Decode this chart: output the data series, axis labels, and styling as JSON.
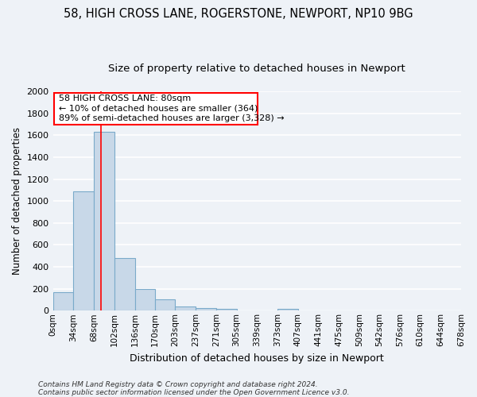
{
  "title1": "58, HIGH CROSS LANE, ROGERSTONE, NEWPORT, NP10 9BG",
  "title2": "Size of property relative to detached houses in Newport",
  "xlabel": "Distribution of detached houses by size in Newport",
  "ylabel": "Number of detached properties",
  "footnote1": "Contains HM Land Registry data © Crown copyright and database right 2024.",
  "footnote2": "Contains public sector information licensed under the Open Government Licence v3.0.",
  "bin_edges": [
    0,
    34,
    68,
    102,
    136,
    170,
    203,
    237,
    271,
    305,
    339,
    373,
    407,
    441,
    475,
    509,
    542,
    576,
    610,
    644,
    678
  ],
  "bar_heights": [
    170,
    1090,
    1630,
    480,
    200,
    100,
    40,
    25,
    18,
    0,
    0,
    18,
    0,
    0,
    0,
    0,
    0,
    0,
    0,
    0
  ],
  "bar_color": "#c8d8e8",
  "bar_edge_color": "#7aaaca",
  "x_tick_labels": [
    "0sqm",
    "34sqm",
    "68sqm",
    "102sqm",
    "136sqm",
    "170sqm",
    "203sqm",
    "237sqm",
    "271sqm",
    "305sqm",
    "339sqm",
    "373sqm",
    "407sqm",
    "441sqm",
    "475sqm",
    "509sqm",
    "542sqm",
    "576sqm",
    "610sqm",
    "644sqm",
    "678sqm"
  ],
  "ylim": [
    0,
    2000
  ],
  "yticks": [
    0,
    200,
    400,
    600,
    800,
    1000,
    1200,
    1400,
    1600,
    1800,
    2000
  ],
  "red_line_x": 80,
  "annotation_line1": "58 HIGH CROSS LANE: 80sqm",
  "annotation_line2": "← 10% of detached houses are smaller (364)",
  "annotation_line3": "89% of semi-detached houses are larger (3,328) →",
  "bg_color": "#eef2f7",
  "grid_color": "#ffffff",
  "title1_fontsize": 10.5,
  "title2_fontsize": 9.5,
  "xlabel_fontsize": 9,
  "ylabel_fontsize": 8.5,
  "tick_fontsize": 7.5,
  "annotation_fontsize": 8,
  "footnote_fontsize": 6.5
}
